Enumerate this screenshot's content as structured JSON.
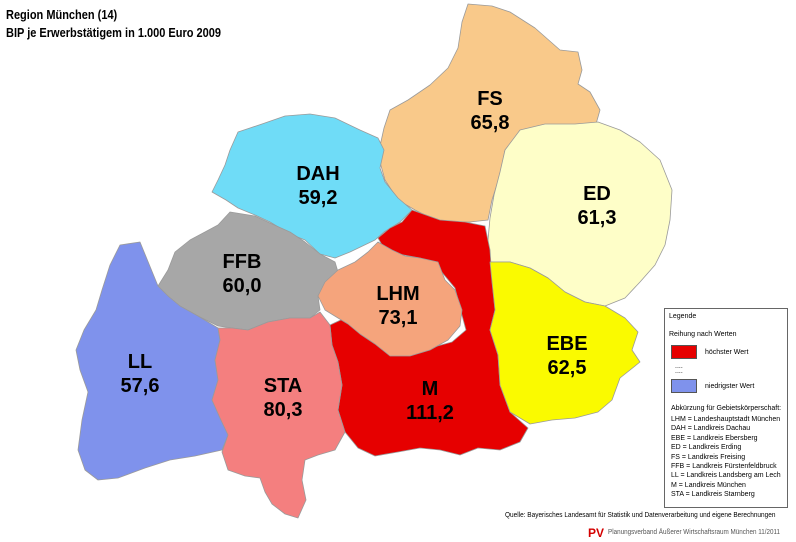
{
  "title": {
    "line1": "Region München (14)",
    "line2": "BIP je Erwerbstätigem in 1.000 Euro 2009"
  },
  "regions": [
    {
      "id": "FS",
      "abbr": "FS",
      "value": "65,8",
      "color": "#f9c98a"
    },
    {
      "id": "DAH",
      "abbr": "DAH",
      "value": "59,2",
      "color": "#6fdcf7"
    },
    {
      "id": "ED",
      "abbr": "ED",
      "value": "61,3",
      "color": "#fefec8"
    },
    {
      "id": "FFB",
      "abbr": "FFB",
      "value": "60,0",
      "color": "#a7a7a7"
    },
    {
      "id": "M",
      "abbr": "M",
      "value": "111,2",
      "color": "#e60000"
    },
    {
      "id": "LHM",
      "abbr": "LHM",
      "value": "73,1",
      "color": "#f5a47c"
    },
    {
      "id": "EBE",
      "abbr": "EBE",
      "value": "62,5",
      "color": "#fafa00"
    },
    {
      "id": "LL",
      "abbr": "LL",
      "value": "57,6",
      "color": "#7f92ec"
    },
    {
      "id": "STA",
      "abbr": "STA",
      "value": "80,3",
      "color": "#f47f7f"
    }
  ],
  "legend": {
    "title": "Legende",
    "subtitle": "Reihung nach Werten",
    "highest": "höchster Wert",
    "dots": "....\n....",
    "lowest": "niedrigster Wert",
    "highest_color": "#e60000",
    "lowest_color": "#7f92ec",
    "abbr_heading": "Abkürzung für Gebietskörperschaft:",
    "abbreviations": [
      "LHM = Landeshauptstadt München",
      "DAH = Landkreis Dachau",
      "EBE = Landkreis Ebersberg",
      "ED = Landkreis Erding",
      "FS = Landkreis Freising",
      "FFB = Landkreis Fürstenfeldbruck",
      "LL = Landkreis Landsberg am Lech",
      "M = Landkreis München",
      "STA = Landkreis Starnberg"
    ]
  },
  "source": "Quelle: Bayerisches Landesamt für Statistik und Datenverarbeitung und eigene Berechnungen",
  "footer": {
    "logo": "PV",
    "text": "Planungsverband Äußerer Wirtschaftsraum München 11/2011"
  }
}
